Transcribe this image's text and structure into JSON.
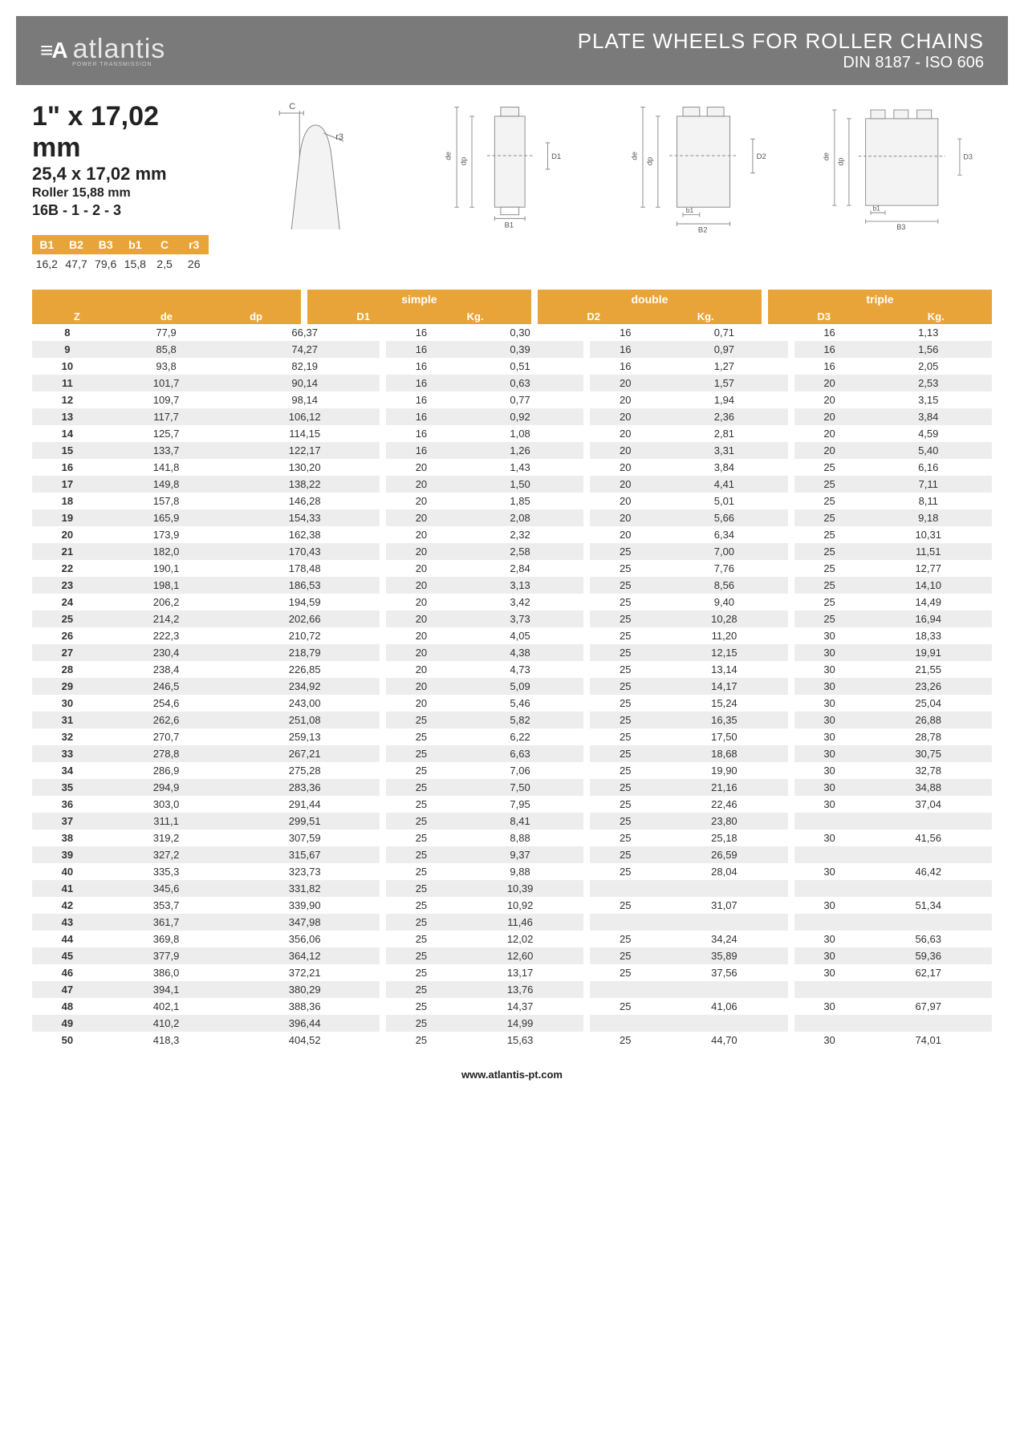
{
  "header": {
    "logo_mark": "≡A",
    "logo_text": "atlantis",
    "logo_sub": "POWER TRANSMISSION",
    "title_line1": "PLATE WHEELS FOR ROLLER CHAINS",
    "title_line2": "DIN 8187 - ISO 606"
  },
  "spec": {
    "title1": "1\" x 17,02 mm",
    "title2": "25,4 x 17,02 mm",
    "title3": "Roller 15,88 mm",
    "title4": "16B - 1 - 2 - 3",
    "param_headers": [
      "B1",
      "B2",
      "B3",
      "b1",
      "C",
      "r3"
    ],
    "param_values": [
      "16,2",
      "47,7",
      "79,6",
      "15,8",
      "2,5",
      "26"
    ]
  },
  "diagram_labels": {
    "C": "C",
    "r3": "r3",
    "de": "de",
    "dp": "dp",
    "D1": "D1",
    "D2": "D2",
    "D3": "D3",
    "B1": "B1",
    "B2": "B2",
    "B3": "B3",
    "b1": "b1"
  },
  "table": {
    "group_labels": {
      "simple": "simple",
      "double": "double",
      "triple": "triple"
    },
    "col_z": "Z",
    "col_de": "de",
    "col_dp": "dp",
    "col_d1": "D1",
    "col_d2": "D2",
    "col_d3": "D3",
    "col_kg": "Kg.",
    "rows": [
      {
        "z": "8",
        "de": "77,9",
        "dp": "66,37",
        "d1": "16",
        "k1": "0,30",
        "d2": "16",
        "k2": "0,71",
        "d3": "16",
        "k3": "1,13"
      },
      {
        "z": "9",
        "de": "85,8",
        "dp": "74,27",
        "d1": "16",
        "k1": "0,39",
        "d2": "16",
        "k2": "0,97",
        "d3": "16",
        "k3": "1,56"
      },
      {
        "z": "10",
        "de": "93,8",
        "dp": "82,19",
        "d1": "16",
        "k1": "0,51",
        "d2": "16",
        "k2": "1,27",
        "d3": "16",
        "k3": "2,05"
      },
      {
        "z": "11",
        "de": "101,7",
        "dp": "90,14",
        "d1": "16",
        "k1": "0,63",
        "d2": "20",
        "k2": "1,57",
        "d3": "20",
        "k3": "2,53"
      },
      {
        "z": "12",
        "de": "109,7",
        "dp": "98,14",
        "d1": "16",
        "k1": "0,77",
        "d2": "20",
        "k2": "1,94",
        "d3": "20",
        "k3": "3,15"
      },
      {
        "z": "13",
        "de": "117,7",
        "dp": "106,12",
        "d1": "16",
        "k1": "0,92",
        "d2": "20",
        "k2": "2,36",
        "d3": "20",
        "k3": "3,84"
      },
      {
        "z": "14",
        "de": "125,7",
        "dp": "114,15",
        "d1": "16",
        "k1": "1,08",
        "d2": "20",
        "k2": "2,81",
        "d3": "20",
        "k3": "4,59"
      },
      {
        "z": "15",
        "de": "133,7",
        "dp": "122,17",
        "d1": "16",
        "k1": "1,26",
        "d2": "20",
        "k2": "3,31",
        "d3": "20",
        "k3": "5,40"
      },
      {
        "z": "16",
        "de": "141,8",
        "dp": "130,20",
        "d1": "20",
        "k1": "1,43",
        "d2": "20",
        "k2": "3,84",
        "d3": "25",
        "k3": "6,16"
      },
      {
        "z": "17",
        "de": "149,8",
        "dp": "138,22",
        "d1": "20",
        "k1": "1,50",
        "d2": "20",
        "k2": "4,41",
        "d3": "25",
        "k3": "7,11"
      },
      {
        "z": "18",
        "de": "157,8",
        "dp": "146,28",
        "d1": "20",
        "k1": "1,85",
        "d2": "20",
        "k2": "5,01",
        "d3": "25",
        "k3": "8,11"
      },
      {
        "z": "19",
        "de": "165,9",
        "dp": "154,33",
        "d1": "20",
        "k1": "2,08",
        "d2": "20",
        "k2": "5,66",
        "d3": "25",
        "k3": "9,18"
      },
      {
        "z": "20",
        "de": "173,9",
        "dp": "162,38",
        "d1": "20",
        "k1": "2,32",
        "d2": "20",
        "k2": "6,34",
        "d3": "25",
        "k3": "10,31"
      },
      {
        "z": "21",
        "de": "182,0",
        "dp": "170,43",
        "d1": "20",
        "k1": "2,58",
        "d2": "25",
        "k2": "7,00",
        "d3": "25",
        "k3": "11,51"
      },
      {
        "z": "22",
        "de": "190,1",
        "dp": "178,48",
        "d1": "20",
        "k1": "2,84",
        "d2": "25",
        "k2": "7,76",
        "d3": "25",
        "k3": "12,77"
      },
      {
        "z": "23",
        "de": "198,1",
        "dp": "186,53",
        "d1": "20",
        "k1": "3,13",
        "d2": "25",
        "k2": "8,56",
        "d3": "25",
        "k3": "14,10"
      },
      {
        "z": "24",
        "de": "206,2",
        "dp": "194,59",
        "d1": "20",
        "k1": "3,42",
        "d2": "25",
        "k2": "9,40",
        "d3": "25",
        "k3": "14,49"
      },
      {
        "z": "25",
        "de": "214,2",
        "dp": "202,66",
        "d1": "20",
        "k1": "3,73",
        "d2": "25",
        "k2": "10,28",
        "d3": "25",
        "k3": "16,94"
      },
      {
        "z": "26",
        "de": "222,3",
        "dp": "210,72",
        "d1": "20",
        "k1": "4,05",
        "d2": "25",
        "k2": "11,20",
        "d3": "30",
        "k3": "18,33"
      },
      {
        "z": "27",
        "de": "230,4",
        "dp": "218,79",
        "d1": "20",
        "k1": "4,38",
        "d2": "25",
        "k2": "12,15",
        "d3": "30",
        "k3": "19,91"
      },
      {
        "z": "28",
        "de": "238,4",
        "dp": "226,85",
        "d1": "20",
        "k1": "4,73",
        "d2": "25",
        "k2": "13,14",
        "d3": "30",
        "k3": "21,55"
      },
      {
        "z": "29",
        "de": "246,5",
        "dp": "234,92",
        "d1": "20",
        "k1": "5,09",
        "d2": "25",
        "k2": "14,17",
        "d3": "30",
        "k3": "23,26"
      },
      {
        "z": "30",
        "de": "254,6",
        "dp": "243,00",
        "d1": "20",
        "k1": "5,46",
        "d2": "25",
        "k2": "15,24",
        "d3": "30",
        "k3": "25,04"
      },
      {
        "z": "31",
        "de": "262,6",
        "dp": "251,08",
        "d1": "25",
        "k1": "5,82",
        "d2": "25",
        "k2": "16,35",
        "d3": "30",
        "k3": "26,88"
      },
      {
        "z": "32",
        "de": "270,7",
        "dp": "259,13",
        "d1": "25",
        "k1": "6,22",
        "d2": "25",
        "k2": "17,50",
        "d3": "30",
        "k3": "28,78"
      },
      {
        "z": "33",
        "de": "278,8",
        "dp": "267,21",
        "d1": "25",
        "k1": "6,63",
        "d2": "25",
        "k2": "18,68",
        "d3": "30",
        "k3": "30,75"
      },
      {
        "z": "34",
        "de": "286,9",
        "dp": "275,28",
        "d1": "25",
        "k1": "7,06",
        "d2": "25",
        "k2": "19,90",
        "d3": "30",
        "k3": "32,78"
      },
      {
        "z": "35",
        "de": "294,9",
        "dp": "283,36",
        "d1": "25",
        "k1": "7,50",
        "d2": "25",
        "k2": "21,16",
        "d3": "30",
        "k3": "34,88"
      },
      {
        "z": "36",
        "de": "303,0",
        "dp": "291,44",
        "d1": "25",
        "k1": "7,95",
        "d2": "25",
        "k2": "22,46",
        "d3": "30",
        "k3": "37,04"
      },
      {
        "z": "37",
        "de": "311,1",
        "dp": "299,51",
        "d1": "25",
        "k1": "8,41",
        "d2": "25",
        "k2": "23,80",
        "d3": "",
        "k3": ""
      },
      {
        "z": "38",
        "de": "319,2",
        "dp": "307,59",
        "d1": "25",
        "k1": "8,88",
        "d2": "25",
        "k2": "25,18",
        "d3": "30",
        "k3": "41,56"
      },
      {
        "z": "39",
        "de": "327,2",
        "dp": "315,67",
        "d1": "25",
        "k1": "9,37",
        "d2": "25",
        "k2": "26,59",
        "d3": "",
        "k3": ""
      },
      {
        "z": "40",
        "de": "335,3",
        "dp": "323,73",
        "d1": "25",
        "k1": "9,88",
        "d2": "25",
        "k2": "28,04",
        "d3": "30",
        "k3": "46,42"
      },
      {
        "z": "41",
        "de": "345,6",
        "dp": "331,82",
        "d1": "25",
        "k1": "10,39",
        "d2": "",
        "k2": "",
        "d3": "",
        "k3": ""
      },
      {
        "z": "42",
        "de": "353,7",
        "dp": "339,90",
        "d1": "25",
        "k1": "10,92",
        "d2": "25",
        "k2": "31,07",
        "d3": "30",
        "k3": "51,34"
      },
      {
        "z": "43",
        "de": "361,7",
        "dp": "347,98",
        "d1": "25",
        "k1": "11,46",
        "d2": "",
        "k2": "",
        "d3": "",
        "k3": ""
      },
      {
        "z": "44",
        "de": "369,8",
        "dp": "356,06",
        "d1": "25",
        "k1": "12,02",
        "d2": "25",
        "k2": "34,24",
        "d3": "30",
        "k3": "56,63"
      },
      {
        "z": "45",
        "de": "377,9",
        "dp": "364,12",
        "d1": "25",
        "k1": "12,60",
        "d2": "25",
        "k2": "35,89",
        "d3": "30",
        "k3": "59,36"
      },
      {
        "z": "46",
        "de": "386,0",
        "dp": "372,21",
        "d1": "25",
        "k1": "13,17",
        "d2": "25",
        "k2": "37,56",
        "d3": "30",
        "k3": "62,17"
      },
      {
        "z": "47",
        "de": "394,1",
        "dp": "380,29",
        "d1": "25",
        "k1": "13,76",
        "d2": "",
        "k2": "",
        "d3": "",
        "k3": ""
      },
      {
        "z": "48",
        "de": "402,1",
        "dp": "388,36",
        "d1": "25",
        "k1": "14,37",
        "d2": "25",
        "k2": "41,06",
        "d3": "30",
        "k3": "67,97"
      },
      {
        "z": "49",
        "de": "410,2",
        "dp": "396,44",
        "d1": "25",
        "k1": "14,99",
        "d2": "",
        "k2": "",
        "d3": "",
        "k3": ""
      },
      {
        "z": "50",
        "de": "418,3",
        "dp": "404,52",
        "d1": "25",
        "k1": "15,63",
        "d2": "25",
        "k2": "44,70",
        "d3": "30",
        "k3": "74,01"
      }
    ]
  },
  "footer": {
    "url": "www.atlantis-pt.com"
  },
  "colors": {
    "header_bg": "#7a7a7a",
    "accent": "#e8a438",
    "row_alt": "#ededed",
    "stroke": "#888888"
  }
}
